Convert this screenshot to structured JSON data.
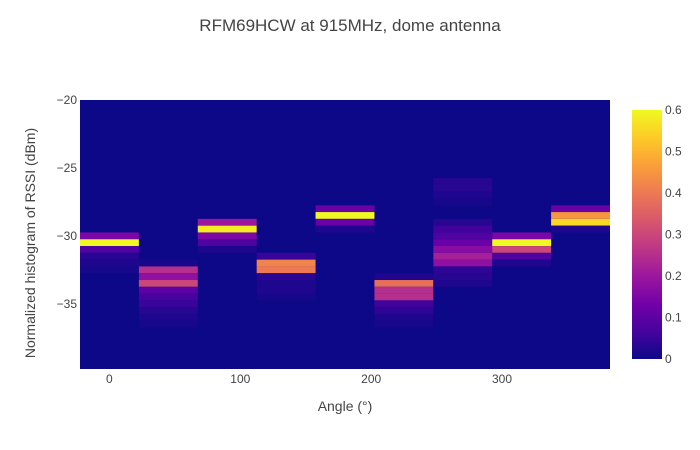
{
  "chart_data": {
    "type": "heatmap",
    "title": "RFM69HCW at 915MHz, dome antenna",
    "xlabel": "Angle (°)",
    "ylabel": "Normalized histogram of RSSI (dBm)",
    "x_ticks": [
      0,
      100,
      200,
      300
    ],
    "y_ticks": [
      -20,
      -25,
      -30,
      -35
    ],
    "xlim": [
      -22.5,
      382.5
    ],
    "ylim": [
      -39.8,
      -20
    ],
    "y_bin_size": 0.5,
    "colorscale": "plasma",
    "colorbar": {
      "range": [
        0,
        0.6
      ],
      "ticks": [
        0,
        0.1,
        0.2,
        0.3,
        0.4,
        0.5,
        0.6
      ]
    },
    "x": [
      0,
      45,
      90,
      135,
      180,
      225,
      270,
      315,
      360
    ],
    "columns": [
      {
        "angle": 0,
        "cells": [
          {
            "rssi": -30,
            "value": 0.15
          },
          {
            "rssi": -30.5,
            "value": 0.6
          },
          {
            "rssi": -31,
            "value": 0.08
          },
          {
            "rssi": -31.5,
            "value": 0.03
          },
          {
            "rssi": -32,
            "value": 0.02
          },
          {
            "rssi": -32.5,
            "value": 0.01
          }
        ]
      },
      {
        "angle": 45,
        "cells": [
          {
            "rssi": -32,
            "value": 0.01
          },
          {
            "rssi": -32.5,
            "value": 0.25
          },
          {
            "rssi": -33,
            "value": 0.18
          },
          {
            "rssi": -33.5,
            "value": 0.3
          },
          {
            "rssi": -34,
            "value": 0.1
          },
          {
            "rssi": -34.5,
            "value": 0.07
          },
          {
            "rssi": -35,
            "value": 0.05
          },
          {
            "rssi": -35.5,
            "value": 0.03
          },
          {
            "rssi": -36,
            "value": 0.02
          },
          {
            "rssi": -36.5,
            "value": 0.01
          }
        ]
      },
      {
        "angle": 90,
        "cells": [
          {
            "rssi": -29,
            "value": 0.2
          },
          {
            "rssi": -29.5,
            "value": 0.58
          },
          {
            "rssi": -30,
            "value": 0.15
          },
          {
            "rssi": -30.5,
            "value": 0.08
          },
          {
            "rssi": -31,
            "value": 0.02
          }
        ]
      },
      {
        "angle": 135,
        "cells": [
          {
            "rssi": -31.5,
            "value": 0.05
          },
          {
            "rssi": -32,
            "value": 0.42
          },
          {
            "rssi": -32.5,
            "value": 0.4
          },
          {
            "rssi": -33,
            "value": 0.03
          },
          {
            "rssi": -33.5,
            "value": 0.02
          },
          {
            "rssi": -34,
            "value": 0.02
          },
          {
            "rssi": -34.5,
            "value": 0.01
          }
        ]
      },
      {
        "angle": 180,
        "cells": [
          {
            "rssi": -28,
            "value": 0.12
          },
          {
            "rssi": -28.5,
            "value": 0.6
          },
          {
            "rssi": -29,
            "value": 0.12
          },
          {
            "rssi": -29.5,
            "value": 0.02
          }
        ]
      },
      {
        "angle": 225,
        "cells": [
          {
            "rssi": -33,
            "value": 0.02
          },
          {
            "rssi": -33.5,
            "value": 0.38
          },
          {
            "rssi": -34,
            "value": 0.25
          },
          {
            "rssi": -34.5,
            "value": 0.25
          },
          {
            "rssi": -35,
            "value": 0.06
          },
          {
            "rssi": -35.5,
            "value": 0.04
          },
          {
            "rssi": -36,
            "value": 0.02
          },
          {
            "rssi": -36.5,
            "value": 0.01
          }
        ]
      },
      {
        "angle": 270,
        "cells": [
          {
            "rssi": -26,
            "value": 0.03
          },
          {
            "rssi": -26.5,
            "value": 0.03
          },
          {
            "rssi": -27,
            "value": 0.02
          },
          {
            "rssi": -27.5,
            "value": 0.01
          },
          {
            "rssi": -29,
            "value": 0.03
          },
          {
            "rssi": -29.5,
            "value": 0.06
          },
          {
            "rssi": -30,
            "value": 0.08
          },
          {
            "rssi": -30.5,
            "value": 0.12
          },
          {
            "rssi": -31,
            "value": 0.17
          },
          {
            "rssi": -31.5,
            "value": 0.22
          },
          {
            "rssi": -32,
            "value": 0.18
          },
          {
            "rssi": -32.5,
            "value": 0.04
          },
          {
            "rssi": -33,
            "value": 0.03
          },
          {
            "rssi": -33.5,
            "value": 0.02
          }
        ]
      },
      {
        "angle": 315,
        "cells": [
          {
            "rssi": -30,
            "value": 0.15
          },
          {
            "rssi": -30.5,
            "value": 0.6
          },
          {
            "rssi": -31,
            "value": 0.3
          },
          {
            "rssi": -31.5,
            "value": 0.08
          },
          {
            "rssi": -32,
            "value": 0.02
          }
        ]
      },
      {
        "angle": 360,
        "cells": [
          {
            "rssi": -28,
            "value": 0.12
          },
          {
            "rssi": -28.5,
            "value": 0.45
          },
          {
            "rssi": -29,
            "value": 0.55
          },
          {
            "rssi": -29.5,
            "value": 0.02
          }
        ]
      }
    ]
  }
}
